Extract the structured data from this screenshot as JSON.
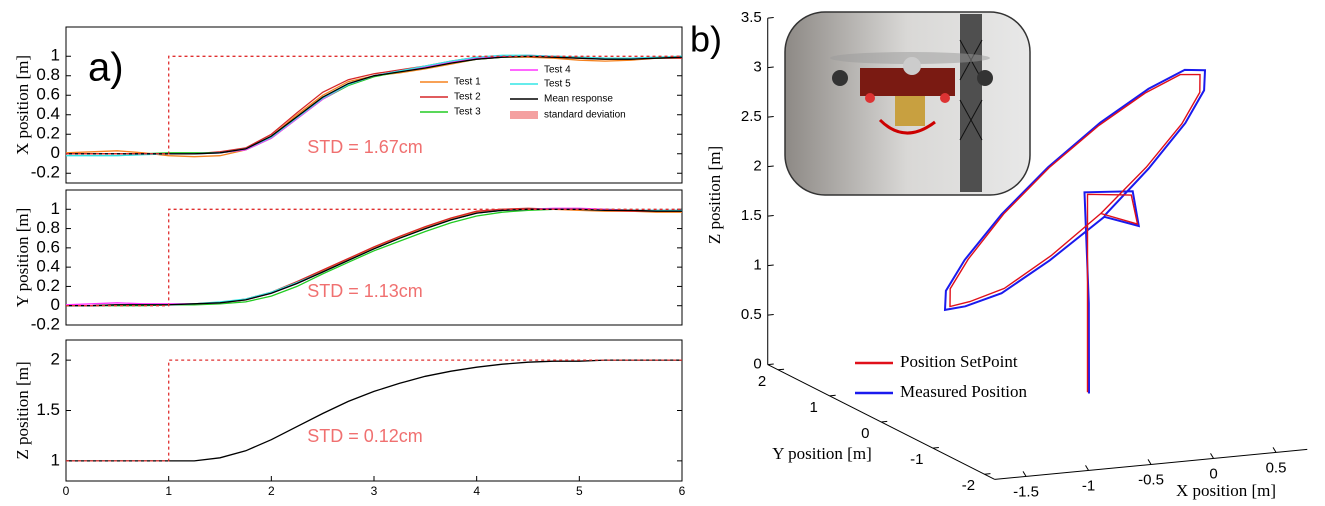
{
  "chart_data": [
    {
      "type": "line",
      "ylabel": "X position [m]",
      "annotation": "STD = 1.67cm",
      "panel_label": "a)",
      "x": [
        0,
        0.25,
        0.5,
        0.75,
        1,
        1.25,
        1.5,
        1.75,
        2,
        2.25,
        2.5,
        2.75,
        3,
        3.25,
        3.5,
        3.75,
        4,
        4.25,
        4.5,
        4.75,
        5,
        5.25,
        5.5,
        5.75,
        6
      ],
      "xlim": [
        0,
        6
      ],
      "ylim": [
        -0.3,
        1.3
      ],
      "yticks": [
        -0.2,
        0,
        0.2,
        0.4,
        0.6,
        0.8,
        1
      ],
      "series": [
        {
          "name": "Test 1",
          "color": "#f5821f",
          "values": [
            0.01,
            0.02,
            0.03,
            0.01,
            -0.02,
            -0.03,
            -0.02,
            0.04,
            0.18,
            0.4,
            0.6,
            0.74,
            0.8,
            0.83,
            0.87,
            0.92,
            0.97,
            0.99,
            0.99,
            0.98,
            0.96,
            0.95,
            0.96,
            0.98,
            0.99
          ]
        },
        {
          "name": "Test 2",
          "color": "#d62728",
          "values": [
            0,
            0,
            0,
            0,
            0,
            0,
            0.02,
            0.06,
            0.2,
            0.42,
            0.63,
            0.76,
            0.82,
            0.86,
            0.9,
            0.95,
            0.99,
            1.0,
            1.0,
            0.99,
            0.98,
            0.97,
            0.97,
            0.98,
            0.98
          ]
        },
        {
          "name": "Test 3",
          "color": "#22cc22",
          "values": [
            0,
            0,
            0,
            0,
            0.01,
            0.01,
            0.01,
            0.04,
            0.16,
            0.36,
            0.56,
            0.7,
            0.79,
            0.84,
            0.88,
            0.93,
            0.97,
            0.99,
            1.0,
            1.0,
            0.99,
            0.98,
            0.98,
            0.98,
            0.99
          ]
        },
        {
          "name": "Test 4",
          "color": "#ff33ff",
          "values": [
            0,
            0,
            0,
            0,
            0,
            0,
            0.01,
            0.04,
            0.16,
            0.36,
            0.56,
            0.71,
            0.8,
            0.85,
            0.89,
            0.94,
            0.98,
            1.0,
            1.01,
            1.0,
            0.99,
            0.98,
            0.98,
            0.99,
            0.99
          ]
        },
        {
          "name": "Test 5",
          "color": "#33e6e6",
          "values": [
            -0.02,
            -0.02,
            -0.02,
            -0.01,
            0,
            0,
            0.01,
            0.05,
            0.17,
            0.37,
            0.57,
            0.71,
            0.8,
            0.85,
            0.9,
            0.95,
            0.99,
            1.01,
            1.01,
            1.0,
            0.99,
            0.98,
            0.98,
            0.99,
            1.0
          ]
        },
        {
          "name": "Mean response",
          "color": "#000000",
          "values": [
            0,
            0,
            0,
            0,
            0,
            0,
            0.01,
            0.05,
            0.18,
            0.38,
            0.58,
            0.72,
            0.8,
            0.84,
            0.88,
            0.93,
            0.97,
            0.99,
            1.0,
            0.99,
            0.98,
            0.97,
            0.97,
            0.98,
            0.99
          ]
        },
        {
          "name": "standard deviation",
          "color": "#f4a0a0",
          "band": true
        },
        {
          "color": "#e03030",
          "dash": true,
          "x": [
            0,
            1,
            1,
            6
          ],
          "values": [
            0,
            0,
            1,
            1
          ]
        }
      ]
    },
    {
      "type": "line",
      "ylabel": "Y position [m]",
      "annotation": "STD = 1.13cm",
      "x": [
        0,
        0.25,
        0.5,
        0.75,
        1,
        1.25,
        1.5,
        1.75,
        2,
        2.25,
        2.5,
        2.75,
        3,
        3.25,
        3.5,
        3.75,
        4,
        4.25,
        4.5,
        4.75,
        5,
        5.25,
        5.5,
        5.75,
        6
      ],
      "xlim": [
        0,
        6
      ],
      "ylim": [
        -0.2,
        1.2
      ],
      "yticks": [
        -0.2,
        0,
        0.2,
        0.4,
        0.6,
        0.8,
        1
      ],
      "series": [
        {
          "color": "#f5821f",
          "values": [
            0,
            0,
            0.01,
            0.01,
            0.01,
            0.02,
            0.03,
            0.06,
            0.13,
            0.24,
            0.36,
            0.48,
            0.6,
            0.71,
            0.81,
            0.9,
            0.97,
            1.0,
            1.0,
            1.0,
            0.99,
            0.98,
            0.98,
            0.97,
            0.97
          ]
        },
        {
          "color": "#d62728",
          "values": [
            0,
            0,
            0.01,
            0.01,
            0.01,
            0.02,
            0.03,
            0.07,
            0.14,
            0.25,
            0.37,
            0.49,
            0.61,
            0.72,
            0.82,
            0.91,
            0.98,
            1.0,
            1.01,
            1.0,
            1.0,
            0.99,
            0.98,
            0.98,
            0.98
          ]
        },
        {
          "color": "#22cc22",
          "values": [
            0,
            0,
            0,
            0,
            0.01,
            0.01,
            0.02,
            0.04,
            0.1,
            0.2,
            0.33,
            0.45,
            0.57,
            0.67,
            0.77,
            0.86,
            0.93,
            0.97,
            0.99,
            1.0,
            1.0,
            1.0,
            0.99,
            0.99,
            0.99
          ]
        },
        {
          "color": "#ff33ff",
          "values": [
            0.01,
            0.02,
            0.03,
            0.02,
            0.02,
            0.02,
            0.03,
            0.06,
            0.13,
            0.23,
            0.35,
            0.47,
            0.59,
            0.7,
            0.8,
            0.89,
            0.96,
            0.99,
            1.0,
            1.01,
            1.01,
            1.0,
            0.99,
            0.99,
            0.99
          ]
        },
        {
          "color": "#33e6e6",
          "values": [
            0,
            0,
            0.01,
            0.01,
            0.01,
            0.02,
            0.04,
            0.07,
            0.14,
            0.24,
            0.35,
            0.47,
            0.59,
            0.7,
            0.8,
            0.89,
            0.96,
            0.99,
            1.0,
            1.0,
            1.0,
            0.99,
            0.99,
            0.99,
            0.99
          ]
        },
        {
          "color": "#000000",
          "values": [
            0,
            0,
            0.01,
            0.01,
            0.01,
            0.02,
            0.03,
            0.06,
            0.13,
            0.23,
            0.35,
            0.47,
            0.59,
            0.7,
            0.8,
            0.89,
            0.96,
            0.99,
            1.0,
            1.0,
            1.0,
            0.99,
            0.99,
            0.98,
            0.98
          ]
        },
        {
          "color": "#e03030",
          "dash": true,
          "x": [
            0,
            1,
            1,
            6
          ],
          "values": [
            0,
            0,
            1,
            1
          ]
        }
      ]
    },
    {
      "type": "line",
      "ylabel": "Z position [m]",
      "annotation": "STD = 0.12cm",
      "x": [
        0,
        0.25,
        0.5,
        0.75,
        1,
        1.25,
        1.5,
        1.75,
        2,
        2.25,
        2.5,
        2.75,
        3,
        3.25,
        3.5,
        3.75,
        4,
        4.25,
        4.5,
        4.75,
        5,
        5.25,
        5.5,
        5.75,
        6
      ],
      "xlim": [
        0,
        6
      ],
      "xticks": [
        0,
        1,
        2,
        3,
        4,
        5,
        6
      ],
      "ylim": [
        0.8,
        2.2
      ],
      "yticks": [
        1,
        1.5,
        2
      ],
      "series": [
        {
          "color": "#000000",
          "values": [
            1,
            1,
            1,
            1,
            1,
            1,
            1.03,
            1.1,
            1.21,
            1.34,
            1.47,
            1.59,
            1.69,
            1.77,
            1.84,
            1.89,
            1.93,
            1.96,
            1.98,
            1.99,
            1.99,
            2,
            2,
            2,
            2
          ]
        },
        {
          "color": "#e03030",
          "dash": true,
          "x": [
            0,
            1,
            1,
            6
          ],
          "values": [
            1,
            1,
            2,
            2
          ]
        }
      ]
    },
    {
      "type": "line3d",
      "panel_label": "b)",
      "xlabel": "X position [m]",
      "ylabel": "Y position [m]",
      "zlabel": "Z position [m]",
      "xlim": [
        -1.75,
        0.75
      ],
      "ylim": [
        -2.2,
        2.2
      ],
      "zlim": [
        0,
        3.5
      ],
      "xticks": [
        -1.5,
        -1,
        -0.5,
        0,
        0.5
      ],
      "yticks": [
        -2,
        -1,
        0,
        1,
        2
      ],
      "zticks": [
        0,
        0.5,
        1,
        1.5,
        2,
        2.5,
        3,
        3.5
      ],
      "series": [
        {
          "name": "Position SetPoint",
          "color": "#e0101a",
          "x": [
            -0.1,
            -0.1,
            -0.1,
            0.25,
            0.3,
            -0.2,
            -0.58,
            -0.91,
            -1.12,
            -1.2,
            -1.12,
            -0.91,
            -0.58,
            -0.2,
            0.18,
            0.51,
            0.72,
            0.8,
            0.72,
            0.51,
            0.18,
            -0.2
          ],
          "y": [
            0,
            0,
            0,
            0,
            0,
            -0.5,
            -0.46,
            -0.35,
            -0.19,
            0,
            0.19,
            0.35,
            0.46,
            0.5,
            0.46,
            0.35,
            0.19,
            0,
            -0.19,
            -0.35,
            -0.46,
            -0.5
          ],
          "z": [
            0.1,
            1.0,
            2.1,
            2.05,
            1.75,
            2.05,
            1.66,
            1.34,
            1.19,
            1.1,
            1.22,
            1.45,
            1.84,
            2.25,
            2.64,
            2.96,
            3.16,
            3.2,
            3.08,
            2.83,
            2.46,
            2.05
          ]
        },
        {
          "name": "Measured Position",
          "color": "#1a1aee",
          "x": [
            -0.08,
            -0.09,
            -0.12,
            0.27,
            0.31,
            -0.18,
            -0.6,
            -0.94,
            -1.16,
            -1.24,
            -1.15,
            -0.93,
            -0.59,
            -0.2,
            0.2,
            0.54,
            0.76,
            0.84,
            0.75,
            0.53,
            0.19,
            -0.18
          ],
          "y": [
            0.02,
            0,
            0.01,
            0.02,
            0,
            -0.52,
            -0.48,
            -0.37,
            -0.2,
            0,
            0.2,
            0.37,
            0.48,
            0.52,
            0.48,
            0.37,
            0.2,
            0,
            -0.2,
            -0.37,
            -0.48,
            -0.52
          ],
          "z": [
            0.08,
            1.0,
            2.12,
            2.08,
            1.73,
            2.02,
            1.62,
            1.3,
            1.15,
            1.07,
            1.2,
            1.44,
            1.83,
            2.25,
            2.66,
            2.99,
            3.2,
            3.24,
            3.1,
            2.84,
            2.45,
            2.03
          ]
        }
      ]
    }
  ]
}
